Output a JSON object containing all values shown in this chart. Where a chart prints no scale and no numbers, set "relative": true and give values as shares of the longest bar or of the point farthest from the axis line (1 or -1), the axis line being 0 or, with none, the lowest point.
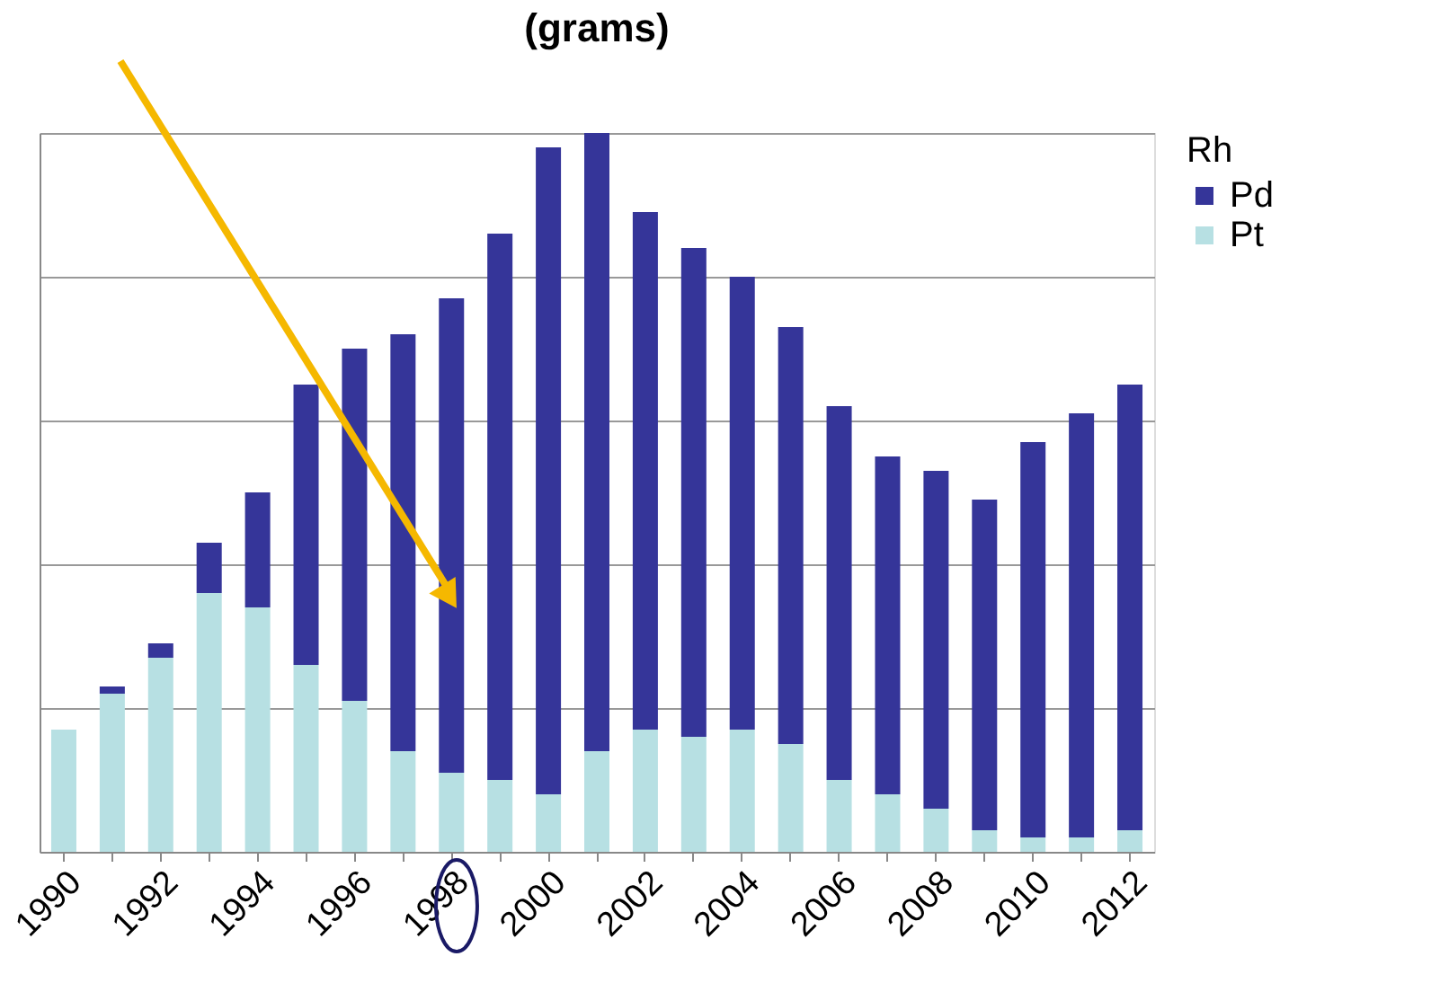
{
  "chart_data": {
    "type": "bar",
    "title": "(grams)",
    "relative": true,
    "stacked": true,
    "categories": [
      "1990",
      null,
      "1992",
      null,
      "1994",
      null,
      "1996",
      null,
      "1998",
      null,
      "2000",
      null,
      "2002",
      null,
      "2004",
      null,
      "2006",
      null,
      "2008",
      null,
      "2010",
      null,
      "2012"
    ],
    "series": [
      {
        "name": "Pt",
        "color": "#b7e0e3",
        "values": [
          0.17,
          0.22,
          0.27,
          0.36,
          0.34,
          0.26,
          0.21,
          0.14,
          0.11,
          0.1,
          0.08,
          0.14,
          0.17,
          0.16,
          0.17,
          0.15,
          0.1,
          0.08,
          0.06,
          0.03,
          0.02,
          0.02,
          0.03
        ]
      },
      {
        "name": "Pd",
        "color": "#353599",
        "values": [
          0,
          0.01,
          0.02,
          0.07,
          0.16,
          0.39,
          0.49,
          0.58,
          0.66,
          0.76,
          0.9,
          0.86,
          0.72,
          0.68,
          0.63,
          0.58,
          0.52,
          0.47,
          0.47,
          0.46,
          0.55,
          0.59,
          0.62
        ]
      }
    ],
    "legend_title": "Rh",
    "legend": "right",
    "grid": "y"
  }
}
